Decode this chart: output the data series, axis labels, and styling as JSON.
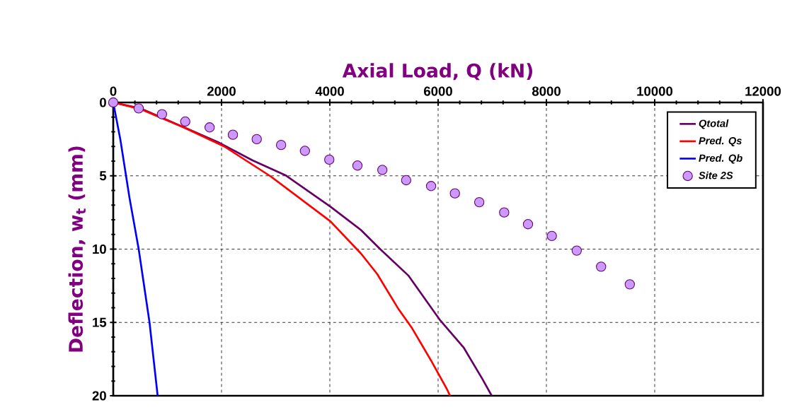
{
  "chart_data": {
    "type": "line",
    "xlabel": "Axial Load, Q (kN)",
    "ylabel": "Deflection, w$_{t}$ (mm)",
    "xlim": [
      0,
      12000
    ],
    "ylim": [
      20,
      0
    ],
    "xticks": [
      0,
      2000,
      4000,
      6000,
      8000,
      10000,
      12000
    ],
    "yticks": [
      0,
      5,
      10,
      15,
      20
    ],
    "grid": true,
    "legend": "top right",
    "series": [
      {
        "name": "Qtotal",
        "color": "#660066",
        "x": [
          0,
          500,
          1310,
          1960,
          2575,
          3180,
          4010,
          4575,
          4930,
          5450,
          6026,
          6470,
          6824,
          6990
        ],
        "values": [
          0,
          0.4,
          1.7,
          2.75,
          3.95,
          4.96,
          7.1,
          8.7,
          10.0,
          11.8,
          14.8,
          16.7,
          18.9,
          20
        ]
      },
      {
        "name": "Pred. Qs",
        "color": "#ff0000",
        "x": [
          0,
          500,
          1300,
          2050,
          2915,
          4010,
          4575,
          4875,
          5270,
          5520,
          5870,
          6170,
          6220
        ],
        "values": [
          0,
          0.45,
          1.7,
          3.0,
          5.06,
          8.1,
          10.3,
          11.7,
          14.1,
          15.4,
          17.6,
          19.6,
          20
        ]
      },
      {
        "name": "Pred. Qb",
        "color": "#0000ff",
        "x": [
          0,
          130,
          300,
          470,
          670,
          820
        ],
        "values": [
          0,
          2.5,
          6.5,
          10,
          15,
          20
        ]
      },
      {
        "name": "Site 2S",
        "type": "scatter",
        "color": "#cc99ff",
        "x": [
          0,
          470,
          900,
          1330,
          1780,
          2210,
          2650,
          3100,
          3540,
          3990,
          4510,
          4970,
          5410,
          5870,
          6310,
          6760,
          7220,
          7660,
          8100,
          8560,
          9010,
          9540
        ],
        "values": [
          0,
          0.4,
          0.8,
          1.3,
          1.7,
          2.2,
          2.5,
          2.9,
          3.3,
          3.9,
          4.3,
          4.6,
          5.3,
          5.7,
          6.2,
          6.8,
          7.5,
          8.3,
          9.1,
          10.1,
          11.2,
          12.4
        ]
      }
    ]
  }
}
